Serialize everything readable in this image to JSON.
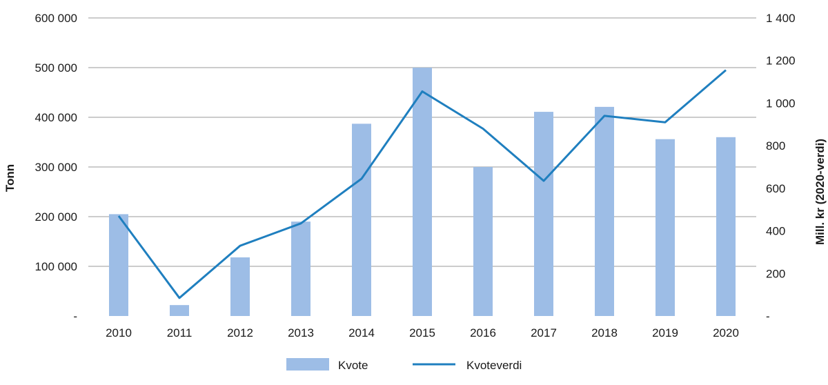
{
  "chart_data": {
    "type": "bar",
    "categories": [
      "2010",
      "2011",
      "2012",
      "2013",
      "2014",
      "2015",
      "2016",
      "2017",
      "2018",
      "2019",
      "2020"
    ],
    "series": [
      {
        "name": "Kvote",
        "type": "bar",
        "axis": "left",
        "color": "#9dbde6",
        "values": [
          205000,
          22000,
          118000,
          190000,
          387000,
          500000,
          300000,
          411000,
          421000,
          356000,
          360000
        ]
      },
      {
        "name": "Kvoteverdi",
        "type": "line",
        "axis": "right",
        "color": "#1f7fbf",
        "values": [
          470,
          85,
          330,
          435,
          645,
          1055,
          880,
          635,
          940,
          910,
          1155
        ]
      }
    ],
    "ylabel": "Tonn",
    "y2label": "Mill. kr (2020-verdi)",
    "ylim": [
      0,
      600000
    ],
    "y2lim": [
      0,
      1400
    ],
    "yticks": [
      "-",
      "100 000",
      "200 000",
      "300 000",
      "400 000",
      "500 000",
      "600 000"
    ],
    "y2ticks": [
      "-",
      "200",
      "400",
      "600",
      "800",
      "1 000",
      "1 200",
      "1 400"
    ],
    "grid": true,
    "legend_position": "bottom"
  }
}
